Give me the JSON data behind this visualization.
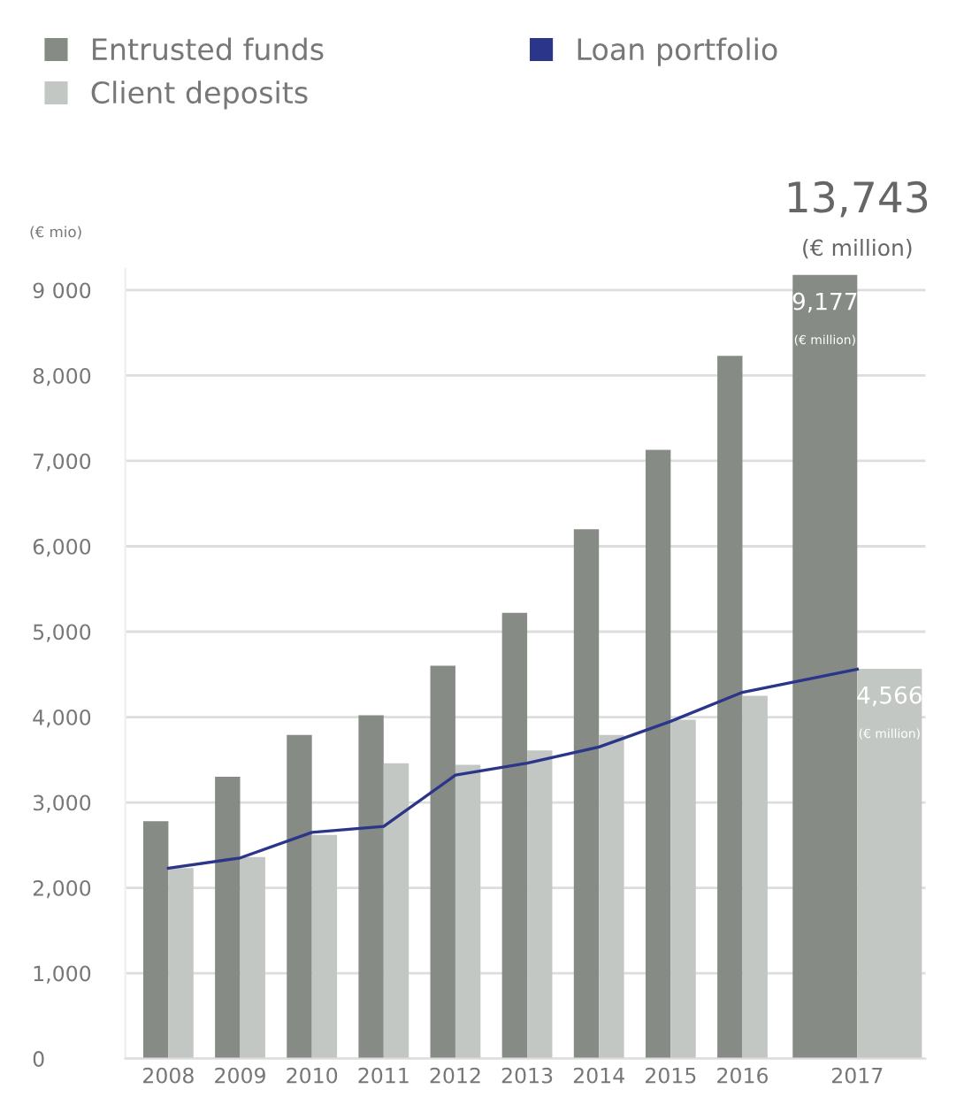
{
  "chart_data": {
    "type": "bar",
    "ylabel": "(€ mio)",
    "categories": [
      "2008",
      "2009",
      "2010",
      "2011",
      "2012",
      "2013",
      "2014",
      "2015",
      "2016",
      "2017"
    ],
    "series": [
      {
        "name": "Entrusted funds",
        "color": "#868b85",
        "values": [
          2780,
          3300,
          3790,
          4020,
          4600,
          5220,
          6200,
          7130,
          8230,
          9177
        ],
        "value_labels": [
          null,
          null,
          null,
          null,
          null,
          null,
          null,
          null,
          null,
          "9,177\n(€ million)"
        ]
      },
      {
        "name": "Client deposits",
        "color": "#c3c7c3",
        "values": [
          2230,
          2360,
          2620,
          3460,
          3440,
          3610,
          3790,
          3970,
          4250,
          4566
        ],
        "value_labels": [
          null,
          null,
          null,
          null,
          null,
          null,
          null,
          null,
          null,
          "4,566\n(€ million)"
        ]
      },
      {
        "name": "Loan portfolio",
        "type": "line",
        "color": "#2b3589",
        "values": [
          2230,
          2350,
          2650,
          2720,
          3320,
          3460,
          3650,
          3950,
          4290,
          4560
        ]
      }
    ],
    "annotations": [
      {
        "text": "13,743\n(€ million)",
        "x": "2017",
        "y": 9177
      }
    ],
    "ylim": [
      0,
      9250
    ],
    "yticks": [
      0,
      {
        "value": 1000,
        "label": "1,000"
      },
      {
        "value": 2000,
        "label": "2,000"
      },
      {
        "value": 3000,
        "label": "3,000"
      },
      {
        "value": 4000,
        "label": "4,000"
      },
      {
        "value": 5000,
        "label": "5,000"
      },
      {
        "value": 6000,
        "label": "6,000"
      },
      {
        "value": 7000,
        "label": "7,000"
      },
      {
        "value": 8000,
        "label": "8,000"
      },
      {
        "value": 9000,
        "label": "9 000"
      }
    ],
    "grid": "y",
    "legend": "top"
  }
}
